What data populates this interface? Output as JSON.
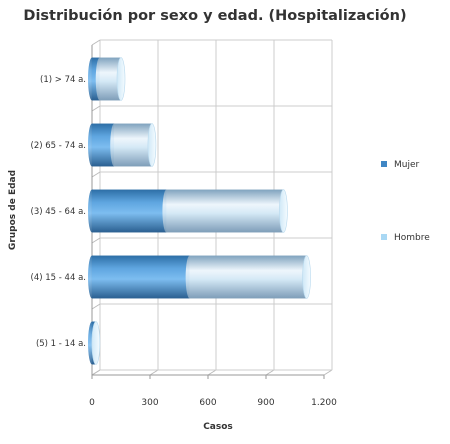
{
  "chart_data": {
    "type": "bar",
    "orientation": "horizontal",
    "stacked": true,
    "style": "3d-cylinder",
    "title": "Distribución por sexo y edad. (Hospitalización)",
    "xlabel": "Casos",
    "ylabel": "Grupos de Edad",
    "categories": [
      "(1) > 74 a.",
      "(2) 65 - 74 a.",
      "(3) 45 - 64 a.",
      "(4) 15 - 44 a.",
      "(5) 1 - 14 a."
    ],
    "xlim": [
      0,
      1200
    ],
    "xticks": [
      0,
      300,
      600,
      900,
      1200
    ],
    "xtick_labels": [
      "0",
      "300",
      "600",
      "900",
      "1.200"
    ],
    "grid": true,
    "legend_position": "right",
    "series": [
      {
        "name": "Mujer",
        "color": "#3f86c4",
        "values": [
          40,
          115,
          385,
          505,
          20
        ]
      },
      {
        "name": "Hombre",
        "color": "#a9d8f4",
        "values": [
          110,
          195,
          605,
          605,
          0
        ]
      }
    ]
  }
}
